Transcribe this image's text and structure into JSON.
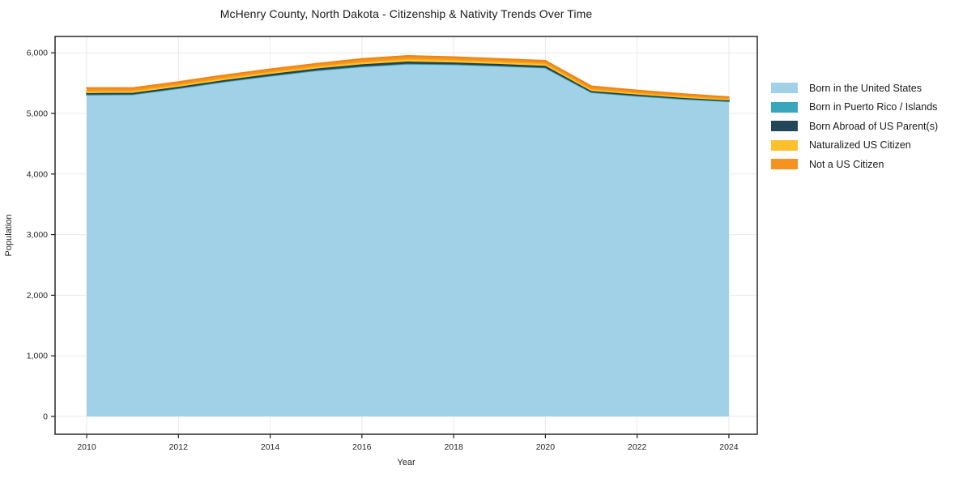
{
  "title": "McHenry County, North Dakota - Citizenship & Nativity Trends Over Time",
  "chart_data": {
    "type": "area",
    "stacked": true,
    "title": "McHenry County, North Dakota - Citizenship & Nativity Trends Over Time",
    "xlabel": "Year",
    "ylabel": "Population",
    "x": [
      2010,
      2011,
      2012,
      2013,
      2014,
      2015,
      2016,
      2017,
      2018,
      2019,
      2020,
      2021,
      2022,
      2023,
      2024
    ],
    "series": [
      {
        "name": "Born in the United States",
        "color": "#a1d1e6",
        "line": "#8fc5dd",
        "values": [
          5305,
          5310,
          5410,
          5520,
          5615,
          5700,
          5765,
          5810,
          5800,
          5780,
          5750,
          5345,
          5285,
          5235,
          5195
        ]
      },
      {
        "name": "Born in Puerto Rico / Islands",
        "color": "#3aa6bb",
        "line": "#2f95a9",
        "values": [
          5,
          5,
          5,
          5,
          5,
          10,
          10,
          10,
          10,
          5,
          5,
          5,
          5,
          5,
          5
        ]
      },
      {
        "name": "Born Abroad of US Parent(s)",
        "color": "#204658",
        "line": "#1a3a49",
        "values": [
          25,
          25,
          25,
          25,
          30,
          30,
          35,
          35,
          30,
          30,
          30,
          20,
          20,
          15,
          15
        ]
      },
      {
        "name": "Naturalized US Citizen",
        "color": "#fcc12c",
        "line": "#f3b117",
        "values": [
          35,
          35,
          35,
          35,
          35,
          35,
          40,
          45,
          45,
          40,
          40,
          35,
          30,
          30,
          25
        ]
      },
      {
        "name": "Not a US Citizen",
        "color": "#f6921f",
        "line": "#ee830f",
        "values": [
          50,
          45,
          45,
          45,
          45,
          45,
          50,
          50,
          45,
          45,
          45,
          45,
          40,
          35,
          30
        ]
      }
    ],
    "totals": [
      5420,
      5420,
      5520,
      5630,
      5730,
      5820,
      5900,
      5950,
      5930,
      5900,
      5870,
      5450,
      5380,
      5320,
      5270
    ],
    "xticks": {
      "values": [
        2010,
        2012,
        2014,
        2016,
        2018,
        2020,
        2022,
        2024
      ],
      "labels": [
        "2010",
        "2012",
        "2014",
        "2016",
        "2018",
        "2020",
        "2022",
        "2024"
      ]
    },
    "yticks": {
      "values": [
        0,
        1000,
        2000,
        3000,
        4000,
        5000,
        6000
      ],
      "labels": [
        "0",
        "1,000",
        "2,000",
        "3,000",
        "4,000",
        "5,000",
        "6,000"
      ]
    },
    "ylim": [
      0,
      6000
    ],
    "grid": true,
    "grid_color": "#e9e9e9",
    "frame_color": "#1a1a1a",
    "tick_label_color": "#262626",
    "legend_position": "right"
  }
}
